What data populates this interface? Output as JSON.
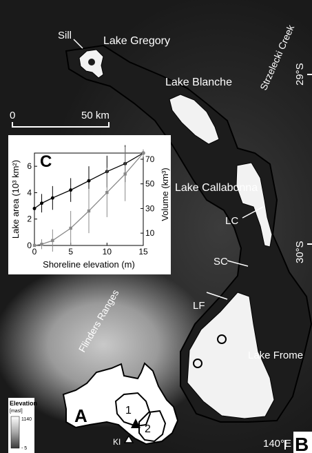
{
  "map": {
    "labels": {
      "sill": "Sill",
      "lake_gregory": "Lake Gregory",
      "lake_blanche": "Lake Blanche",
      "strzelecki_creek": "Strzelecki Creek",
      "lake_callabonna": "Lake Callabonna",
      "lc": "LC",
      "sc": "SC",
      "lf": "LF",
      "lake_frome": "Lake Frome",
      "flinders_ranges": "Flinders Ranges",
      "lat_29": "29°S",
      "lat_30": "30°S",
      "lon_140": "140°E"
    },
    "scale_bar": {
      "left": "0",
      "right": "50 km"
    },
    "panel_b_letter": "B",
    "colors": {
      "lake": "#f2f2f2",
      "shore": "#000000",
      "relief_light": "#c8c8c8",
      "relief_dark": "#262626"
    }
  },
  "inset_c": {
    "letter": "C",
    "xlabel": "Shoreline elevation (m)",
    "ylabel_left": "Lake area (10³ km²)",
    "ylabel_right": "Volume (km³)",
    "x_ticks": [
      "0",
      "5",
      "10",
      "15"
    ],
    "left_ticks": [
      "0",
      "2",
      "4",
      "6"
    ],
    "right_ticks": [
      "10",
      "30",
      "50",
      "70"
    ]
  },
  "chart_data": {
    "type": "line",
    "xlabel": "Shoreline elevation (m)",
    "ylabel": "Lake area (10³ km²)",
    "y2label": "Volume (km³)",
    "xlim": [
      0,
      15
    ],
    "ylim": [
      0,
      7
    ],
    "y2lim": [
      0,
      75
    ],
    "series": [
      {
        "axis": "left",
        "color": "#000000",
        "x": [
          0,
          1,
          2.5,
          5,
          7.5,
          10,
          12.5,
          15
        ],
        "y": [
          2.8,
          3.2,
          3.6,
          4.2,
          4.9,
          5.6,
          6.2,
          7.0
        ],
        "err": [
          0.4,
          0.7,
          0.9,
          0.9,
          1.1,
          1.2,
          1.4,
          0.2
        ]
      },
      {
        "axis": "right",
        "color": "#888888",
        "x": [
          0,
          1,
          2.5,
          5,
          7.5,
          10,
          12.5,
          15
        ],
        "y": [
          0,
          1,
          4,
          14,
          28,
          43,
          58,
          75
        ],
        "err": [
          1,
          4,
          9,
          14,
          18,
          20,
          22,
          3
        ]
      }
    ]
  },
  "inset_a": {
    "letter": "A",
    "region_1": "1",
    "region_2": "2",
    "ki": "KI"
  },
  "legend": {
    "title": "Elevation",
    "unit": "[masl]",
    "max": "1140",
    "min": "- 5"
  }
}
